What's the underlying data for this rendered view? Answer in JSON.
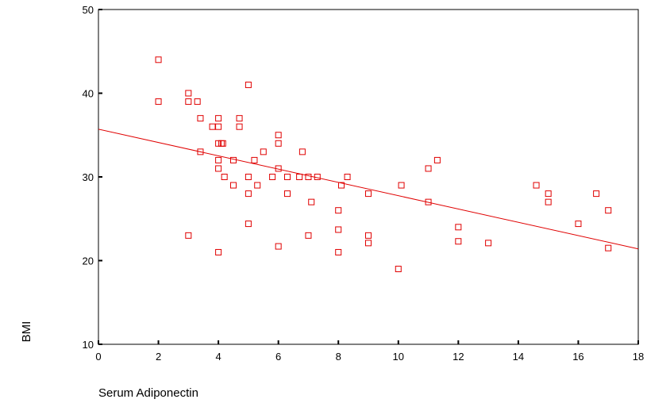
{
  "chart_data": {
    "type": "scatter",
    "title": "",
    "xlabel": "Serum Adiponectin",
    "ylabel": "BMI",
    "xlim": [
      0,
      18
    ],
    "ylim": [
      10,
      50
    ],
    "xticks": [
      0,
      2,
      4,
      6,
      8,
      10,
      12,
      14,
      16,
      18
    ],
    "yticks": [
      10,
      20,
      30,
      40,
      50
    ],
    "grid": false,
    "legend": "none",
    "marker_color": "#e00000",
    "line_color": "#e00000",
    "fit_line": {
      "x": [
        0,
        18
      ],
      "y": [
        35.7,
        21.4
      ]
    },
    "points": [
      {
        "x": 2,
        "y": 44
      },
      {
        "x": 2,
        "y": 39
      },
      {
        "x": 3,
        "y": 40
      },
      {
        "x": 3,
        "y": 39
      },
      {
        "x": 3.3,
        "y": 39
      },
      {
        "x": 3,
        "y": 23
      },
      {
        "x": 3.4,
        "y": 37
      },
      {
        "x": 3.4,
        "y": 33
      },
      {
        "x": 3.8,
        "y": 36
      },
      {
        "x": 4,
        "y": 37
      },
      {
        "x": 4,
        "y": 36
      },
      {
        "x": 4,
        "y": 34
      },
      {
        "x": 4.1,
        "y": 34
      },
      {
        "x": 4.15,
        "y": 34
      },
      {
        "x": 4,
        "y": 32
      },
      {
        "x": 4,
        "y": 31
      },
      {
        "x": 4.2,
        "y": 30
      },
      {
        "x": 4,
        "y": 21
      },
      {
        "x": 4.5,
        "y": 32
      },
      {
        "x": 4.5,
        "y": 29
      },
      {
        "x": 4.7,
        "y": 37
      },
      {
        "x": 4.7,
        "y": 36
      },
      {
        "x": 5,
        "y": 41
      },
      {
        "x": 5,
        "y": 30
      },
      {
        "x": 5,
        "y": 28
      },
      {
        "x": 5,
        "y": 24.4
      },
      {
        "x": 5.2,
        "y": 32
      },
      {
        "x": 5.3,
        "y": 29
      },
      {
        "x": 5.5,
        "y": 33
      },
      {
        "x": 5.8,
        "y": 30
      },
      {
        "x": 6,
        "y": 35
      },
      {
        "x": 6,
        "y": 34
      },
      {
        "x": 6,
        "y": 31
      },
      {
        "x": 6,
        "y": 21.7
      },
      {
        "x": 6.3,
        "y": 30
      },
      {
        "x": 6.3,
        "y": 28
      },
      {
        "x": 6.7,
        "y": 30
      },
      {
        "x": 6.8,
        "y": 33
      },
      {
        "x": 7,
        "y": 30
      },
      {
        "x": 7.1,
        "y": 27
      },
      {
        "x": 7,
        "y": 23
      },
      {
        "x": 7.3,
        "y": 30
      },
      {
        "x": 8,
        "y": 26
      },
      {
        "x": 8,
        "y": 23.7
      },
      {
        "x": 8,
        "y": 21
      },
      {
        "x": 8.1,
        "y": 29
      },
      {
        "x": 8.3,
        "y": 30
      },
      {
        "x": 9,
        "y": 28
      },
      {
        "x": 9,
        "y": 23
      },
      {
        "x": 9,
        "y": 22.1
      },
      {
        "x": 10,
        "y": 19
      },
      {
        "x": 10.1,
        "y": 29
      },
      {
        "x": 11,
        "y": 31
      },
      {
        "x": 11,
        "y": 27
      },
      {
        "x": 11.3,
        "y": 32
      },
      {
        "x": 12,
        "y": 24
      },
      {
        "x": 12,
        "y": 22.3
      },
      {
        "x": 13,
        "y": 22.1
      },
      {
        "x": 14.6,
        "y": 29
      },
      {
        "x": 15,
        "y": 28
      },
      {
        "x": 15,
        "y": 27
      },
      {
        "x": 16,
        "y": 24.4
      },
      {
        "x": 16.6,
        "y": 28
      },
      {
        "x": 17,
        "y": 26
      },
      {
        "x": 17,
        "y": 21.5
      }
    ]
  }
}
